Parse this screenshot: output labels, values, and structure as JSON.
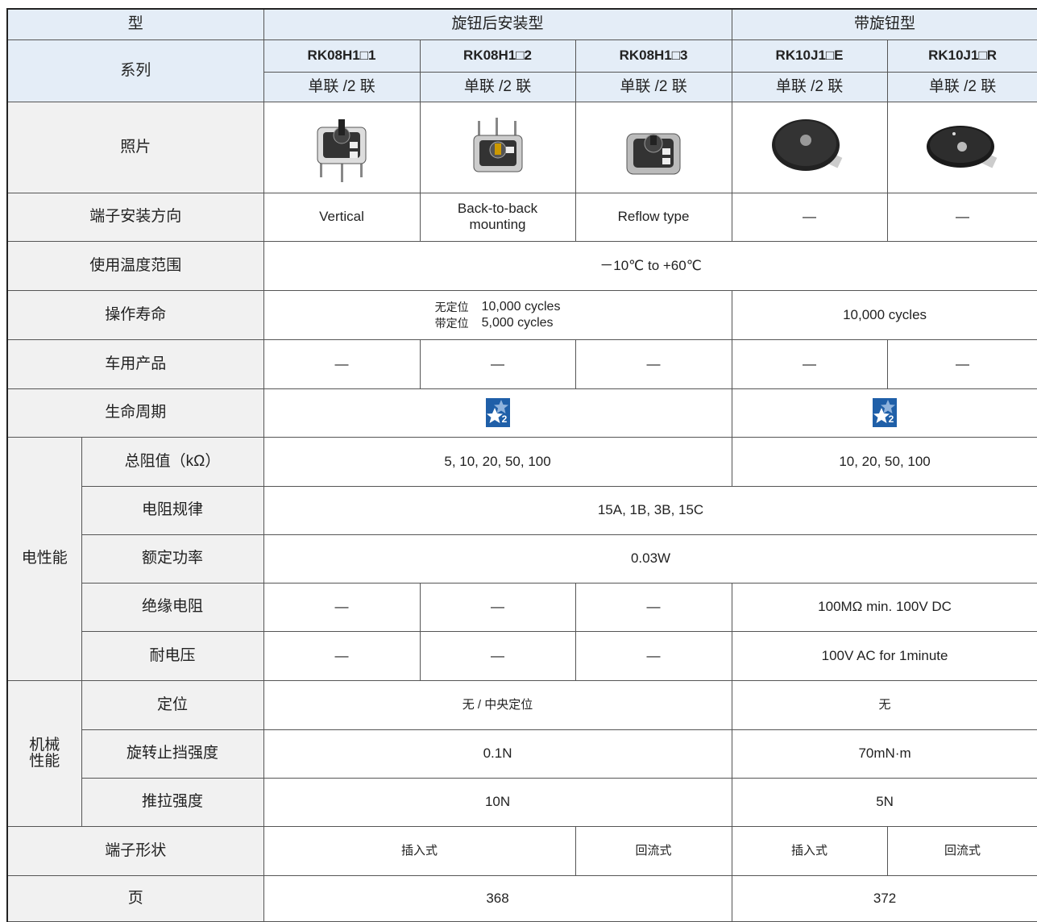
{
  "header": {
    "type": "型",
    "groups": [
      "旋钮后安装型",
      "带旋钮型"
    ],
    "series": "系列",
    "models": [
      "RK08H1□1",
      "RK08H1□2",
      "RK08H1□3",
      "RK10J1□E",
      "RK10J1□R"
    ],
    "gangs": [
      "单联 /2 联",
      "单联 /2 联",
      "单联 /2 联",
      "单联 /2 联",
      "单联 /2 联"
    ]
  },
  "photo_label": "照片",
  "specs": [
    {
      "label": "端子安装方向",
      "cells": [
        "Vertical",
        [
          "Back-to-back",
          "mounting"
        ],
        "Reflow type",
        "—",
        "—"
      ]
    },
    {
      "label": "使用温度范围",
      "cells": [
        "－10℃ to +60℃"
      ]
    },
    {
      "label": "操作寿命",
      "cells": [
        [
          [
            "无定位",
            "10,000 cycles"
          ],
          [
            "带定位",
            "5,000 cycles"
          ]
        ],
        "10,000 cycles"
      ]
    },
    {
      "label": "车用产品",
      "cells": [
        "—",
        "—",
        "—",
        "—",
        "—"
      ]
    },
    {
      "label": "生命周期",
      "cells": [
        "2",
        "2"
      ]
    }
  ],
  "electrical": {
    "label": "电性能",
    "rows": [
      {
        "label": "总阻值（kΩ）",
        "cells": [
          "5, 10, 20, 50, 100",
          "10, 20, 50, 100"
        ]
      },
      {
        "label": "电阻规律",
        "cells": [
          "15A, 1B, 3B, 15C"
        ]
      },
      {
        "label": "额定功率",
        "cells": [
          "0.03W"
        ]
      },
      {
        "label": "绝缘电阻",
        "cells": [
          "—",
          "—",
          "—",
          "100MΩ min. 100V DC"
        ]
      },
      {
        "label": "耐电压",
        "cells": [
          "—",
          "—",
          "—",
          "100V AC for 1minute"
        ]
      }
    ]
  },
  "mechanical": {
    "label": [
      "机械",
      "性能"
    ],
    "rows": [
      {
        "label": "定位",
        "cells": [
          "无 / 中央定位",
          "无"
        ]
      },
      {
        "label": "旋转止挡强度",
        "cells": [
          "0.1N",
          "70mN·m"
        ]
      },
      {
        "label": "推拉强度",
        "cells": [
          "10N",
          "5N"
        ]
      }
    ]
  },
  "terminal": {
    "label": "端子形状",
    "cells": [
      "插入式",
      "回流式",
      "插入式",
      "回流式"
    ]
  },
  "page": {
    "label": "页",
    "cells": [
      "368",
      "372"
    ]
  }
}
